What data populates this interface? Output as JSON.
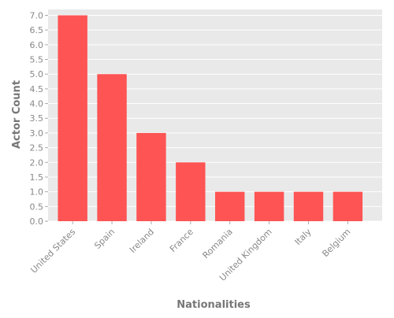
{
  "chart_data": {
    "type": "bar",
    "title": "",
    "xlabel": "Nationalities",
    "ylabel": "Actor Count",
    "categories": [
      "United States",
      "Spain",
      "Ireland",
      "France",
      "Romania",
      "United Kingdom",
      "Italy",
      "Belgium"
    ],
    "values": [
      7,
      5,
      3,
      2,
      1,
      1,
      1,
      1
    ],
    "ylim": [
      0,
      7.2
    ],
    "yticks": [
      0.0,
      0.5,
      1.0,
      1.5,
      2.0,
      2.5,
      3.0,
      3.5,
      4.0,
      4.5,
      5.0,
      5.5,
      6.0,
      6.5,
      7.0
    ],
    "ytick_labels": [
      "0.0",
      "0.5",
      "1.0",
      "1.5",
      "2.0",
      "2.5",
      "3.0",
      "3.5",
      "4.0",
      "4.5",
      "5.0",
      "5.5",
      "6.0",
      "6.5",
      "7.0"
    ],
    "grid": true,
    "bar_color": "#fe5454",
    "background_color": "#e9e9e9",
    "grid_color": "#ffffff"
  }
}
